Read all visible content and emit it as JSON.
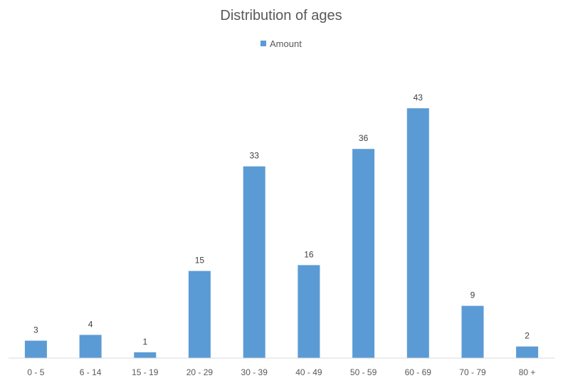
{
  "chart_data": {
    "type": "bar",
    "title": "Distribution of ages",
    "xlabel": "",
    "ylabel": "",
    "categories": [
      "0 - 5",
      "6 - 14",
      "15 - 19",
      "20 - 29",
      "30 - 39",
      "40 - 49",
      "50 - 59",
      "60 - 69",
      "70 - 79",
      "80 +"
    ],
    "series": [
      {
        "name": "Amount",
        "values": [
          3,
          4,
          1,
          15,
          33,
          16,
          36,
          43,
          9,
          2
        ],
        "color": "#5b9bd5"
      }
    ],
    "ylim": [
      0,
      45
    ],
    "grid": false,
    "legend_position": "top",
    "data_labels": true,
    "axis_line_color": "#d9d9d9"
  }
}
